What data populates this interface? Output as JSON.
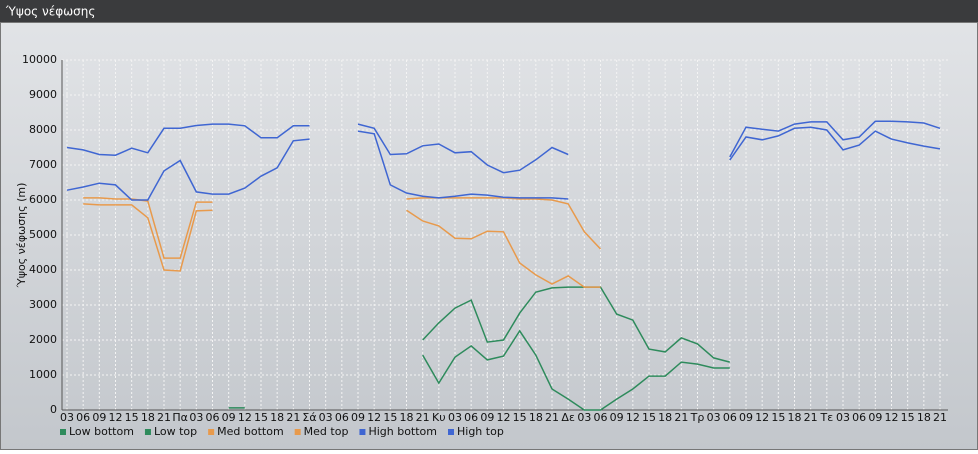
{
  "chart_data": {
    "type": "line",
    "title": "Ύψος νέφωσης",
    "y_label": "Ύψος νέφωσης (m)",
    "categories": [
      "03",
      "06",
      "09",
      "12",
      "15",
      "18",
      "21",
      "Πα",
      "03",
      "06",
      "09",
      "12",
      "15",
      "18",
      "21",
      "Σά",
      "03",
      "06",
      "09",
      "12",
      "15",
      "18",
      "21",
      "Κυ",
      "03",
      "06",
      "09",
      "12",
      "15",
      "18",
      "21",
      "Δε",
      "03",
      "06",
      "09",
      "12",
      "15",
      "18",
      "21",
      "Τρ",
      "03",
      "06",
      "09",
      "12",
      "15",
      "18",
      "21",
      "Τε",
      "03",
      "06",
      "09",
      "12",
      "15",
      "18",
      "21"
    ],
    "ylim": [
      0,
      10000
    ],
    "yticks": [
      0,
      1000,
      2000,
      3000,
      4000,
      5000,
      6000,
      7000,
      8000,
      9000,
      10000
    ],
    "grid": true,
    "legend": "bottom",
    "series": [
      {
        "name": "Low bottom",
        "color": "#2e8b5c",
        "values": [
          null,
          null,
          null,
          null,
          null,
          null,
          null,
          null,
          null,
          null,
          null,
          null,
          null,
          null,
          null,
          null,
          null,
          null,
          null,
          null,
          null,
          null,
          1570,
          770,
          1510,
          1830,
          1430,
          1540,
          2260,
          1570,
          600,
          310,
          0,
          0,
          310,
          600,
          970,
          970,
          1370,
          1310,
          1200,
          1200,
          null,
          null,
          null,
          null,
          null,
          null,
          null,
          null,
          null,
          null,
          null,
          null,
          null
        ]
      },
      {
        "name": "Low top",
        "color": "#2e8b5c",
        "values": [
          null,
          null,
          null,
          null,
          null,
          null,
          null,
          null,
          null,
          null,
          60,
          60,
          null,
          null,
          null,
          null,
          null,
          null,
          null,
          null,
          null,
          null,
          2000,
          2490,
          2910,
          3140,
          1940,
          2000,
          2770,
          3370,
          3490,
          3510,
          3510,
          3510,
          2740,
          2570,
          1740,
          1660,
          2060,
          1890,
          1490,
          1370,
          null,
          null,
          null,
          null,
          null,
          null,
          null,
          null,
          null,
          null,
          null,
          null,
          null
        ]
      },
      {
        "name": "Med bottom",
        "color": "#e89a4c",
        "values": [
          null,
          5890,
          5860,
          5860,
          5860,
          5490,
          4000,
          3970,
          5690,
          5710,
          null,
          null,
          null,
          null,
          null,
          null,
          null,
          null,
          null,
          null,
          null,
          5710,
          5400,
          5260,
          4910,
          4890,
          5110,
          5090,
          4200,
          3860,
          3600,
          3830,
          3510,
          3510,
          null,
          null,
          null,
          null,
          null,
          null,
          null,
          null,
          null,
          null,
          null,
          null,
          null,
          null,
          null,
          null,
          null,
          null,
          null,
          null,
          null
        ]
      },
      {
        "name": "Med top",
        "color": "#e89a4c",
        "values": [
          null,
          6060,
          6060,
          6030,
          6030,
          5970,
          4340,
          4340,
          5940,
          5940,
          null,
          null,
          null,
          null,
          null,
          null,
          null,
          null,
          null,
          null,
          null,
          6030,
          6060,
          6060,
          6060,
          6060,
          6060,
          6060,
          6030,
          6030,
          6000,
          5890,
          5090,
          4600,
          null,
          null,
          null,
          null,
          null,
          null,
          null,
          null,
          null,
          null,
          null,
          null,
          null,
          null,
          null,
          null,
          null,
          null,
          null,
          null,
          null
        ]
      },
      {
        "name": "High bottom",
        "color": "#3f66d2",
        "values": [
          6280,
          6370,
          6480,
          6430,
          6000,
          6000,
          6830,
          7130,
          6230,
          6170,
          6170,
          6340,
          6680,
          6920,
          7690,
          7740,
          null,
          null,
          7970,
          7890,
          6430,
          6200,
          6110,
          6060,
          6110,
          6170,
          6140,
          6080,
          6060,
          6060,
          6060,
          6030,
          null,
          null,
          null,
          null,
          null,
          null,
          null,
          null,
          null,
          7140,
          7800,
          7720,
          7830,
          8050,
          8080,
          8000,
          7430,
          7570,
          7970,
          7740,
          7630,
          7540,
          7460
        ]
      },
      {
        "name": "High top",
        "color": "#3f66d2",
        "values": [
          7500,
          7430,
          7300,
          7280,
          7480,
          7350,
          8050,
          8050,
          8130,
          8170,
          8170,
          8120,
          7780,
          7780,
          8120,
          8120,
          null,
          null,
          8170,
          8050,
          7300,
          7320,
          7550,
          7600,
          7350,
          7380,
          7000,
          6780,
          6850,
          7150,
          7500,
          7300,
          null,
          null,
          null,
          null,
          null,
          null,
          null,
          null,
          null,
          7230,
          8080,
          8020,
          7970,
          8170,
          8230,
          8230,
          7720,
          7800,
          8250,
          8250,
          8230,
          8200,
          8050
        ]
      }
    ]
  }
}
